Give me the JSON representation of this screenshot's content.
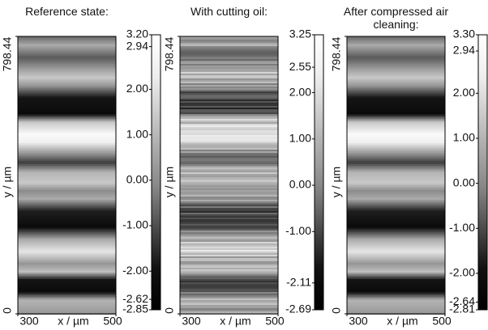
{
  "chart_data": [
    {
      "type": "heatmap",
      "title": "Reference state:",
      "xlabel": "x / µm",
      "ylabel": "y / µm",
      "xlim": [
        300,
        500
      ],
      "xticks": [
        300,
        500
      ],
      "ylim": [
        0,
        798.44
      ],
      "yticks": [
        0,
        798.44
      ],
      "clim": [
        -2.85,
        3.2
      ],
      "cticks": [
        {
          "value": 3.2,
          "label": "3.20"
        },
        2.94,
        {
          "value": 2,
          "label": "2.00"
        },
        {
          "value": 1,
          "label": "1.00"
        },
        {
          "value": 0,
          "label": "0.00"
        },
        {
          "value": -1,
          "label": "-1.00"
        },
        {
          "value": -2,
          "label": "-2.00"
        },
        -2.62,
        -2.85
      ]
    },
    {
      "type": "heatmap",
      "title": "With cutting oil:",
      "xlabel": "x / µm",
      "ylabel": "y / µm",
      "xlim": [
        300,
        500
      ],
      "xticks": [
        300,
        500
      ],
      "ylim": [
        0,
        798.44
      ],
      "yticks": [
        0,
        798.44
      ],
      "clim": [
        -2.69,
        3.25
      ],
      "cticks": [
        3.25,
        2.55,
        {
          "value": 2,
          "label": "2.00"
        },
        {
          "value": 1,
          "label": "1.00"
        },
        {
          "value": 0,
          "label": "0.00"
        },
        {
          "value": -1,
          "label": "-1.00"
        },
        -2.11,
        -2.69
      ]
    },
    {
      "type": "heatmap",
      "title": "After compressed air cleaning:",
      "xlabel": "x / µm",
      "ylabel": "y / µm",
      "xlim": [
        300,
        500
      ],
      "xticks": [
        300,
        500
      ],
      "ylim": [
        0,
        798.44
      ],
      "yticks": [
        0,
        798.44
      ],
      "clim": [
        -2.81,
        3.3
      ],
      "cticks": [
        {
          "value": 3.3,
          "label": "3.30"
        },
        2.94,
        {
          "value": 2,
          "label": "2.00"
        },
        {
          "value": 1,
          "label": "1.00"
        },
        {
          "value": 0,
          "label": "0.00"
        },
        {
          "value": -1,
          "label": "-1.00"
        },
        {
          "value": -2,
          "label": "-2.00"
        },
        -2.64,
        -2.81
      ]
    }
  ]
}
